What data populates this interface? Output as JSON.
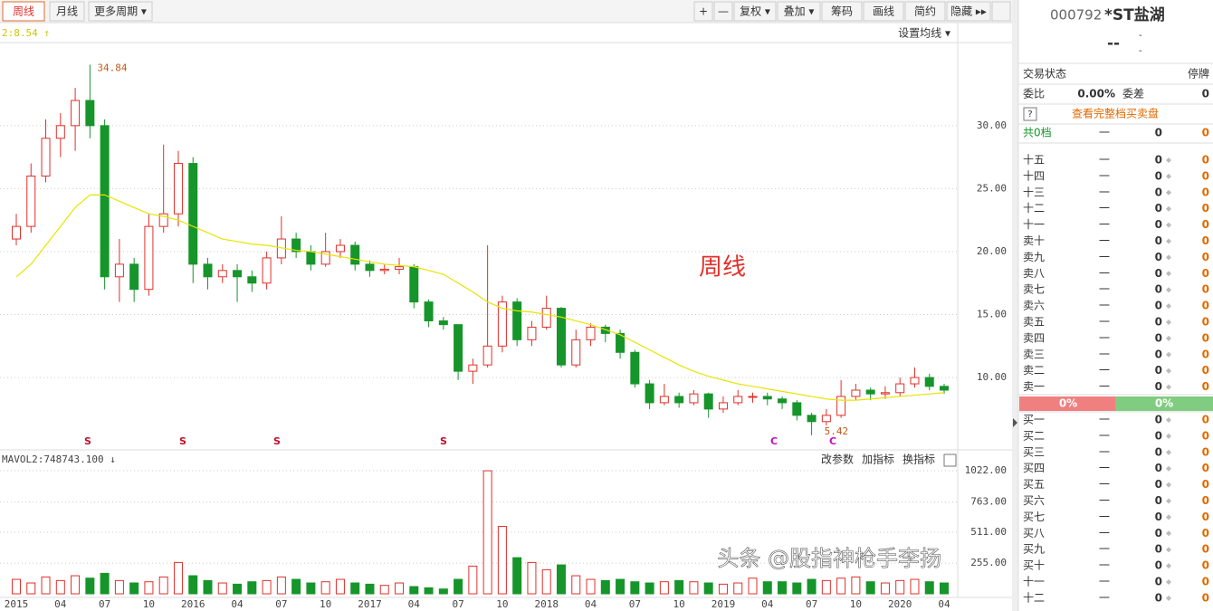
{
  "toolbar": {
    "tabs": [
      "周线",
      "月线",
      "更多周期 ▾"
    ],
    "tools": [
      "+",
      "—",
      "复权 ▾",
      "叠加 ▾",
      "筹码",
      "画线",
      "简约",
      "隐藏 ▸▸"
    ]
  },
  "chart_data": {
    "type": "candlestick",
    "title": "周线",
    "ma_label": "2:8.54 ↑",
    "ma_button": "设置均线 ▾",
    "x_labels": [
      "2015",
      "04",
      "07",
      "10",
      "2016",
      "04",
      "07",
      "10",
      "2017",
      "04",
      "07",
      "10",
      "2018",
      "04",
      "07",
      "10",
      "2019",
      "04",
      "07",
      "10",
      "2020",
      "04"
    ],
    "open": [
      21,
      22,
      26,
      29,
      30,
      32,
      30,
      18,
      19,
      17,
      22,
      23,
      27,
      19,
      18,
      18.5,
      18,
      17.5,
      19.5,
      21,
      20,
      19,
      20,
      20.5,
      19,
      18.5,
      18.6,
      18.8,
      16,
      14.5,
      14.2,
      10.5,
      11,
      12.5,
      16,
      13,
      14,
      15.5,
      11,
      13,
      14,
      13.5,
      12,
      9.5,
      8,
      8.5,
      8,
      8.7,
      7.5,
      8,
      8.5,
      8.5,
      8.3,
      8,
      7,
      6.5,
      7,
      8.5,
      9,
      8.7,
      8.8,
      9.5,
      10,
      9.3
    ],
    "high": [
      23,
      27,
      30.5,
      31,
      33,
      34.84,
      30.5,
      21,
      19.5,
      23,
      28.5,
      28,
      27.5,
      19.5,
      19,
      19,
      18.5,
      20,
      22.8,
      21.5,
      20.5,
      21.5,
      21,
      20.8,
      19.3,
      19,
      19.5,
      19,
      16.2,
      14.8,
      14.2,
      11.5,
      20.5,
      16.5,
      16.3,
      14.5,
      16.5,
      15.6,
      13.8,
      14.3,
      14.2,
      13.8,
      12.2,
      9.8,
      9.5,
      8.8,
      9,
      8.8,
      8.5,
      9,
      8.8,
      8.8,
      8.5,
      8.2,
      7.2,
      7.5,
      9.8,
      9.5,
      9.2,
      9.3,
      10,
      10.8,
      10.3,
      9.5
    ],
    "low": [
      20.5,
      21.5,
      25.5,
      27.5,
      28,
      29,
      17,
      16,
      16,
      16.5,
      21.5,
      22,
      17.5,
      17,
      17.5,
      16,
      16.8,
      17,
      19,
      19.5,
      18.5,
      18.8,
      19.5,
      18.5,
      18,
      18.2,
      18.2,
      15.5,
      14,
      13.8,
      9.8,
      9.5,
      10.8,
      12,
      12.5,
      12.5,
      13.8,
      10.8,
      10.8,
      12.5,
      12.8,
      11.5,
      9.2,
      7.5,
      7.8,
      7.6,
      7.8,
      6.8,
      7.2,
      7.8,
      8,
      7.8,
      7.5,
      6.6,
      5.42,
      6.2,
      6.8,
      8.2,
      8.2,
      8.3,
      8.5,
      9.2,
      9,
      8.7
    ],
    "close": [
      22,
      26,
      29,
      30,
      32,
      30,
      18,
      19,
      17,
      22,
      23,
      27,
      19,
      18,
      18.5,
      18,
      17.5,
      19.5,
      21,
      20,
      19,
      20,
      20.5,
      19,
      18.5,
      18.6,
      18.8,
      16,
      14.5,
      14.2,
      10.5,
      11,
      12.5,
      16,
      13,
      14,
      15.5,
      11,
      13,
      14,
      13.5,
      12,
      9.5,
      8,
      8.5,
      8,
      8.7,
      7.5,
      8,
      8.5,
      8.5,
      8.3,
      8,
      7,
      6.5,
      7,
      8.5,
      9,
      8.7,
      8.8,
      9.5,
      10,
      9.3,
      9
    ],
    "ma": {
      "color": "#e8e400",
      "values": [
        18,
        19,
        20.5,
        22,
        23.5,
        24.5,
        24.5,
        24,
        23.5,
        23,
        22.8,
        22.5,
        22,
        21.5,
        21,
        20.8,
        20.6,
        20.5,
        20.3,
        20.1,
        20,
        19.8,
        19.6,
        19.4,
        19.2,
        19,
        18.9,
        18.8,
        18.5,
        18.2,
        17.5,
        16.8,
        16,
        15.5,
        15.3,
        15.2,
        15,
        14.8,
        14.5,
        14.2,
        13.8,
        13.4,
        12.8,
        12.2,
        11.6,
        11,
        10.5,
        10.1,
        9.8,
        9.5,
        9.3,
        9.1,
        8.9,
        8.7,
        8.5,
        8.3,
        8.2,
        8.2,
        8.3,
        8.4,
        8.5,
        8.6,
        8.7,
        8.8
      ]
    },
    "up_color": "#e0302a",
    "down_color": "#16952a",
    "ylim": [
      4.4,
      36.6
    ],
    "yticks": [
      {
        "value": 10,
        "label": "10.00"
      },
      {
        "value": 15,
        "label": "15.00"
      },
      {
        "value": 20,
        "label": "20.00"
      },
      {
        "value": 25,
        "label": "25.00"
      },
      {
        "value": 30,
        "label": "30.00"
      }
    ],
    "grid": true,
    "signals": [
      "S",
      "S",
      "S",
      "S",
      "C",
      "C"
    ],
    "volume": {
      "label": "MAVOL2:748743.100 ↓",
      "buttons": [
        "改参数",
        "加指标",
        "换指标"
      ],
      "values": [
        120,
        90,
        140,
        110,
        150,
        130,
        170,
        110,
        90,
        100,
        140,
        260,
        150,
        110,
        90,
        80,
        100,
        110,
        140,
        120,
        90,
        100,
        120,
        90,
        80,
        70,
        90,
        60,
        50,
        40,
        120,
        230,
        1022,
        560,
        300,
        260,
        200,
        240,
        150,
        120,
        110,
        120,
        100,
        90,
        100,
        110,
        100,
        90,
        80,
        90,
        130,
        100,
        100,
        90,
        120,
        110,
        130,
        140,
        100,
        90,
        110,
        120,
        100,
        90
      ],
      "ylim": [
        0,
        1060
      ],
      "yticks": [
        {
          "value": 255,
          "label": "255.00"
        },
        {
          "value": 511,
          "label": "511.00"
        },
        {
          "value": 763,
          "label": "763.00"
        },
        {
          "value": 1022,
          "label": "1022.00"
        }
      ]
    }
  },
  "order_book": {
    "code": "000792",
    "name": "*ST盐湖",
    "price": "--",
    "change": "-",
    "change_pct": "-",
    "status": [
      "交易状态",
      "停牌"
    ],
    "ratio": [
      "委比",
      "0.00%",
      "委差",
      "0"
    ],
    "help": "?",
    "link": "查看完整档买卖盘",
    "total": [
      "共0档",
      "一",
      "0",
      "0"
    ],
    "sell": [
      [
        "十五",
        "一",
        "0",
        "0"
      ],
      [
        "十四",
        "一",
        "0",
        "0"
      ],
      [
        "十三",
        "一",
        "0",
        "0"
      ],
      [
        "十二",
        "一",
        "0",
        "0"
      ],
      [
        "十一",
        "一",
        "0",
        "0"
      ],
      [
        "卖十",
        "一",
        "0",
        "0"
      ],
      [
        "卖九",
        "一",
        "0",
        "0"
      ],
      [
        "卖八",
        "一",
        "0",
        "0"
      ],
      [
        "卖七",
        "一",
        "0",
        "0"
      ],
      [
        "卖六",
        "一",
        "0",
        "0"
      ],
      [
        "卖五",
        "一",
        "0",
        "0"
      ],
      [
        "卖四",
        "一",
        "0",
        "0"
      ],
      [
        "卖三",
        "一",
        "0",
        "0"
      ],
      [
        "卖二",
        "一",
        "0",
        "0"
      ],
      [
        "卖一",
        "一",
        "0",
        "0"
      ]
    ],
    "bar": [
      "0%",
      "0%"
    ],
    "buy": [
      [
        "买一",
        "一",
        "0",
        "0"
      ],
      [
        "买二",
        "一",
        "0",
        "0"
      ],
      [
        "买三",
        "一",
        "0",
        "0"
      ],
      [
        "买四",
        "一",
        "0",
        "0"
      ],
      [
        "买五",
        "一",
        "0",
        "0"
      ],
      [
        "买六",
        "一",
        "0",
        "0"
      ],
      [
        "买七",
        "一",
        "0",
        "0"
      ],
      [
        "买八",
        "一",
        "0",
        "0"
      ],
      [
        "买九",
        "一",
        "0",
        "0"
      ],
      [
        "买十",
        "一",
        "0",
        "0"
      ],
      [
        "十一",
        "一",
        "0",
        "0"
      ],
      [
        "十二",
        "一",
        "0",
        "0"
      ]
    ]
  },
  "watermark": "头条 @股指神枪手李扬"
}
